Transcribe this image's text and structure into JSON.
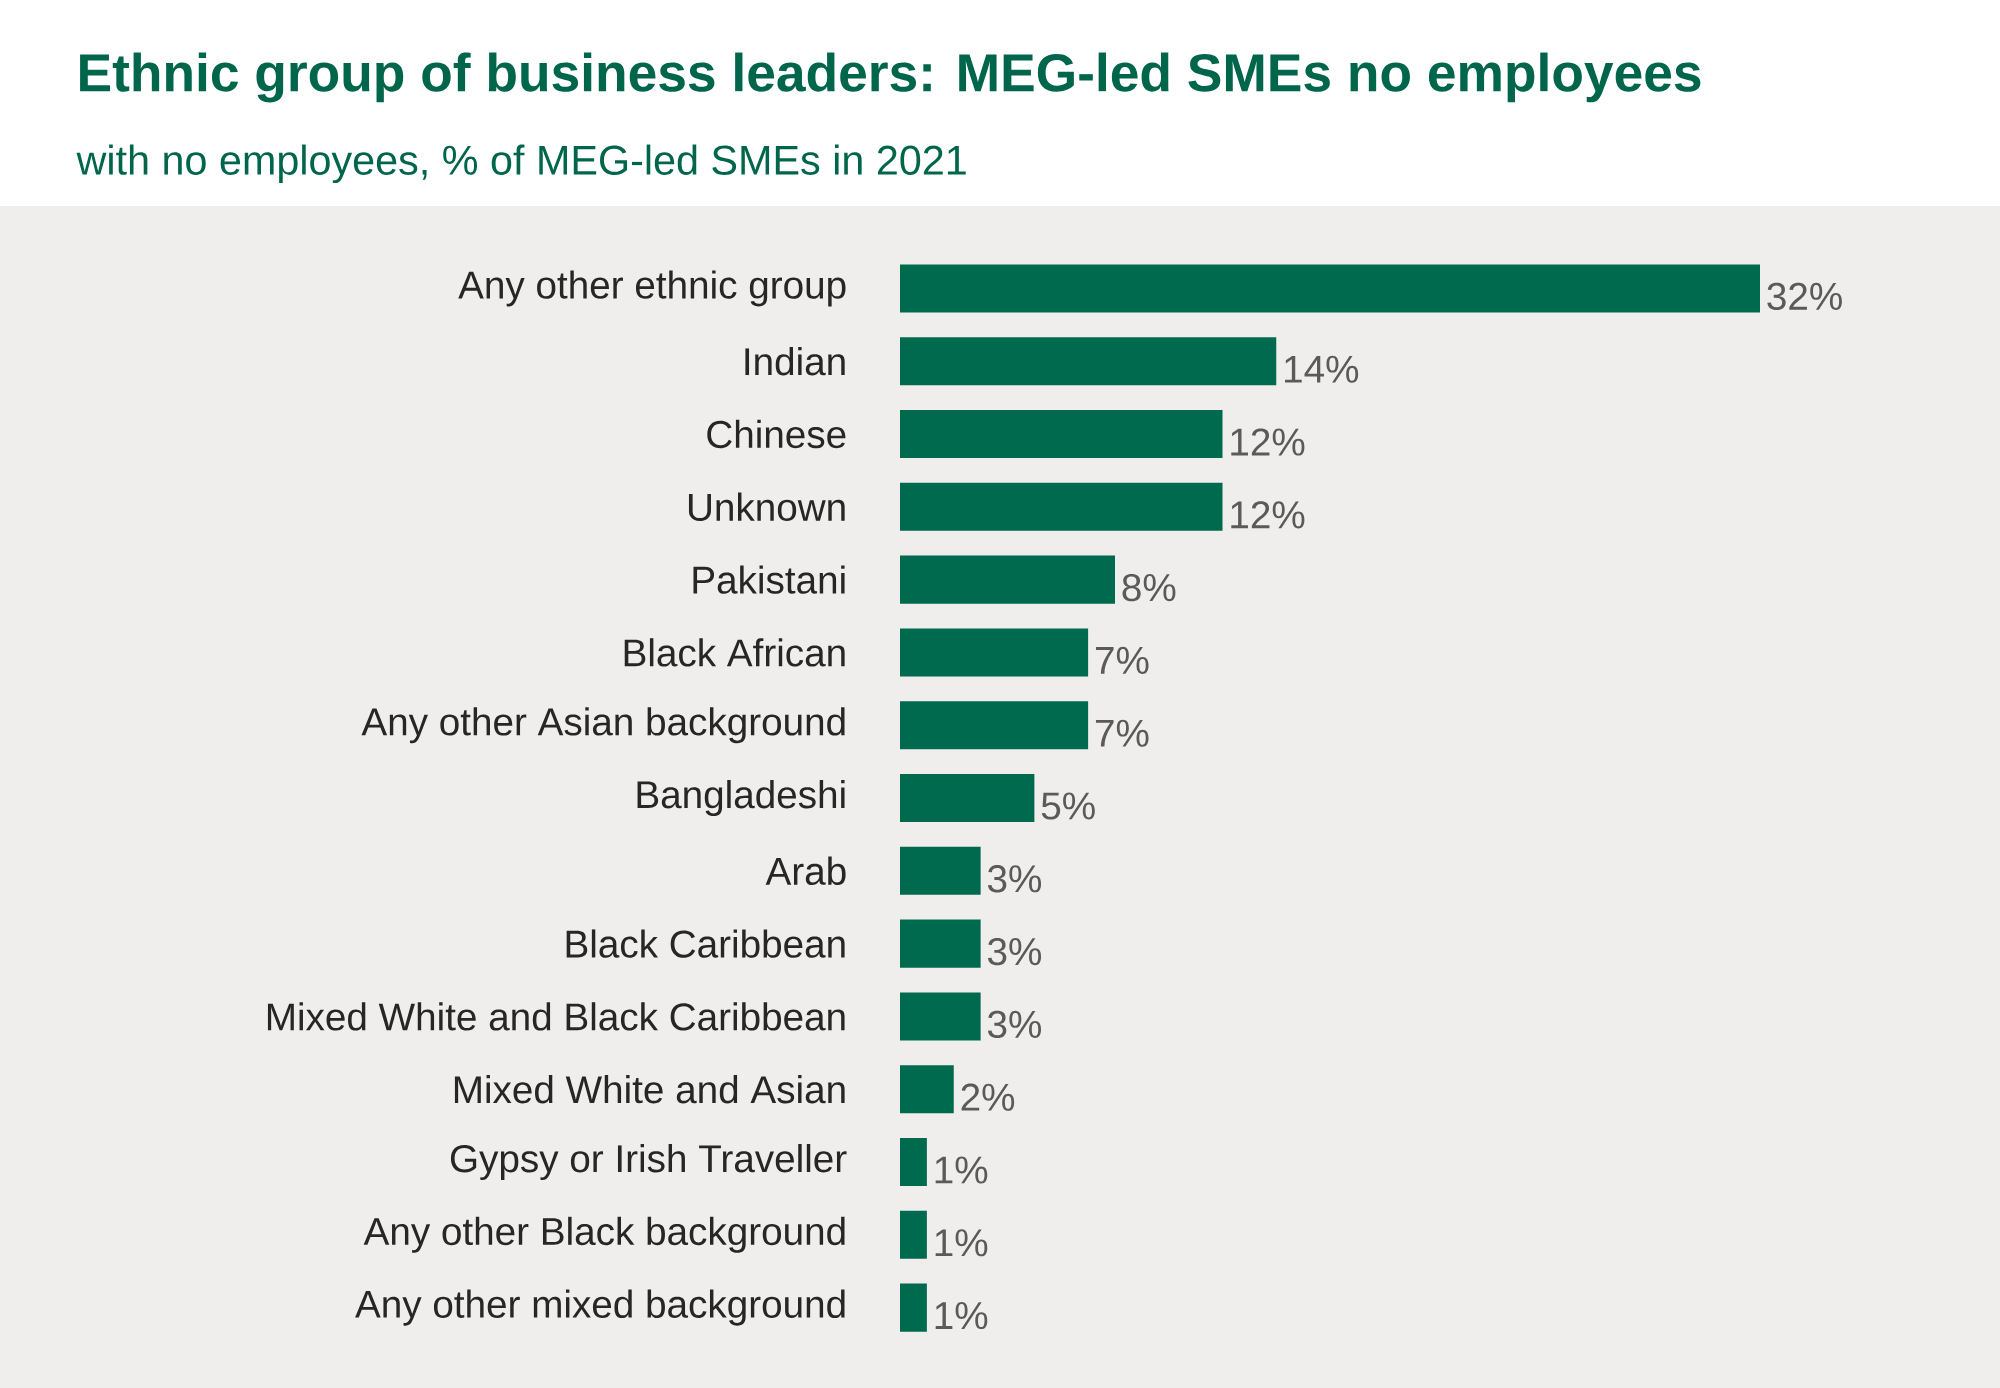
{
  "chart_data": {
    "type": "bar",
    "orientation": "horizontal",
    "title": "Ethnic group of business leaders: MEG-led SMEs no employees",
    "subtitle": "with no employees, % of MEG-led SMEs in 2021",
    "categories": [
      "Any other ethnic group",
      "Indian",
      "Chinese",
      "Unknown",
      "Pakistani",
      "Black African",
      "Any other Asian background",
      "Bangladeshi",
      "Arab",
      "Black Caribbean",
      "Mixed White and Black Caribbean",
      "Mixed White and Asian",
      "Gypsy or Irish Traveller",
      "Any other Black background",
      "Any other mixed background"
    ],
    "values": [
      32,
      14,
      12,
      12,
      8,
      7,
      7,
      5,
      3,
      3,
      3,
      2,
      1,
      1,
      1
    ],
    "value_labels": [
      "32%",
      "14%",
      "12%",
      "12%",
      "8%",
      "7%",
      "7%",
      "5%",
      "3%",
      "3%",
      "3%",
      "2%",
      "1%",
      "1%",
      "1%"
    ],
    "color": "#006a4e"
  }
}
